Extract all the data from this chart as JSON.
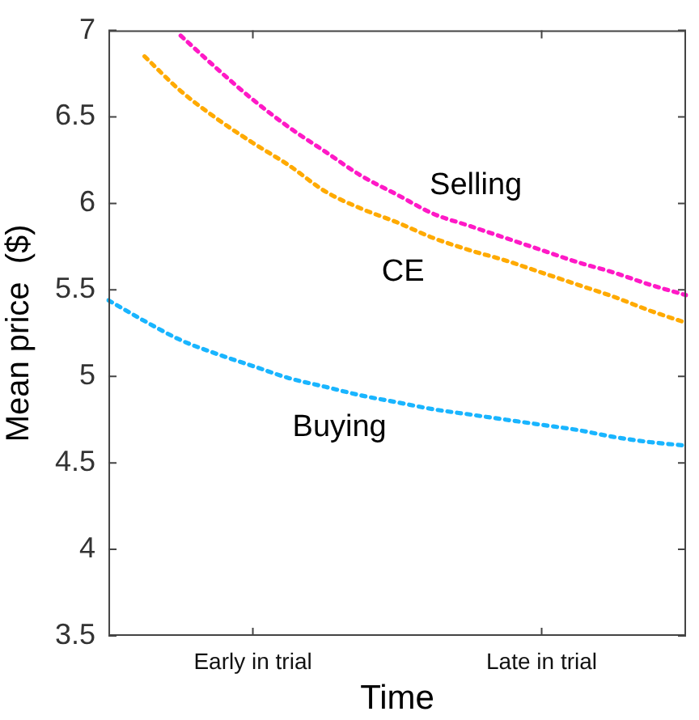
{
  "chart_data": {
    "type": "line",
    "xlabel": "Time",
    "ylabel": "Mean price  ($)",
    "categories": [
      null,
      null,
      null,
      null,
      "Early in trial",
      null,
      null,
      null,
      null,
      null,
      null,
      null,
      "Late in trial",
      null,
      null,
      null,
      null
    ],
    "ylim": [
      3.5,
      7
    ],
    "yticks": [
      3.5,
      4,
      4.5,
      5,
      5.5,
      6,
      6.5,
      7
    ],
    "grid": false,
    "legend": false,
    "marker": "none",
    "line_style": "dotted",
    "series": [
      {
        "name": "Selling",
        "color": "#ff19c6",
        "values": [
          null,
          null,
          6.97,
          6.78,
          6.6,
          6.44,
          6.3,
          6.16,
          6.05,
          5.94,
          5.87,
          5.8,
          5.73,
          5.66,
          5.6,
          5.53,
          5.47
        ]
      },
      {
        "name": "CE",
        "color": "#ffaa00",
        "values": [
          null,
          6.85,
          6.65,
          6.49,
          6.35,
          6.22,
          6.07,
          5.97,
          5.89,
          5.8,
          5.73,
          5.67,
          5.6,
          5.53,
          5.46,
          5.38,
          5.31
        ]
      },
      {
        "name": "Buying",
        "color": "#19b5ff",
        "values": [
          5.44,
          5.32,
          5.21,
          5.13,
          5.06,
          4.99,
          4.94,
          4.89,
          4.85,
          4.81,
          4.78,
          4.75,
          4.72,
          4.69,
          4.65,
          4.62,
          4.6
        ]
      }
    ]
  }
}
